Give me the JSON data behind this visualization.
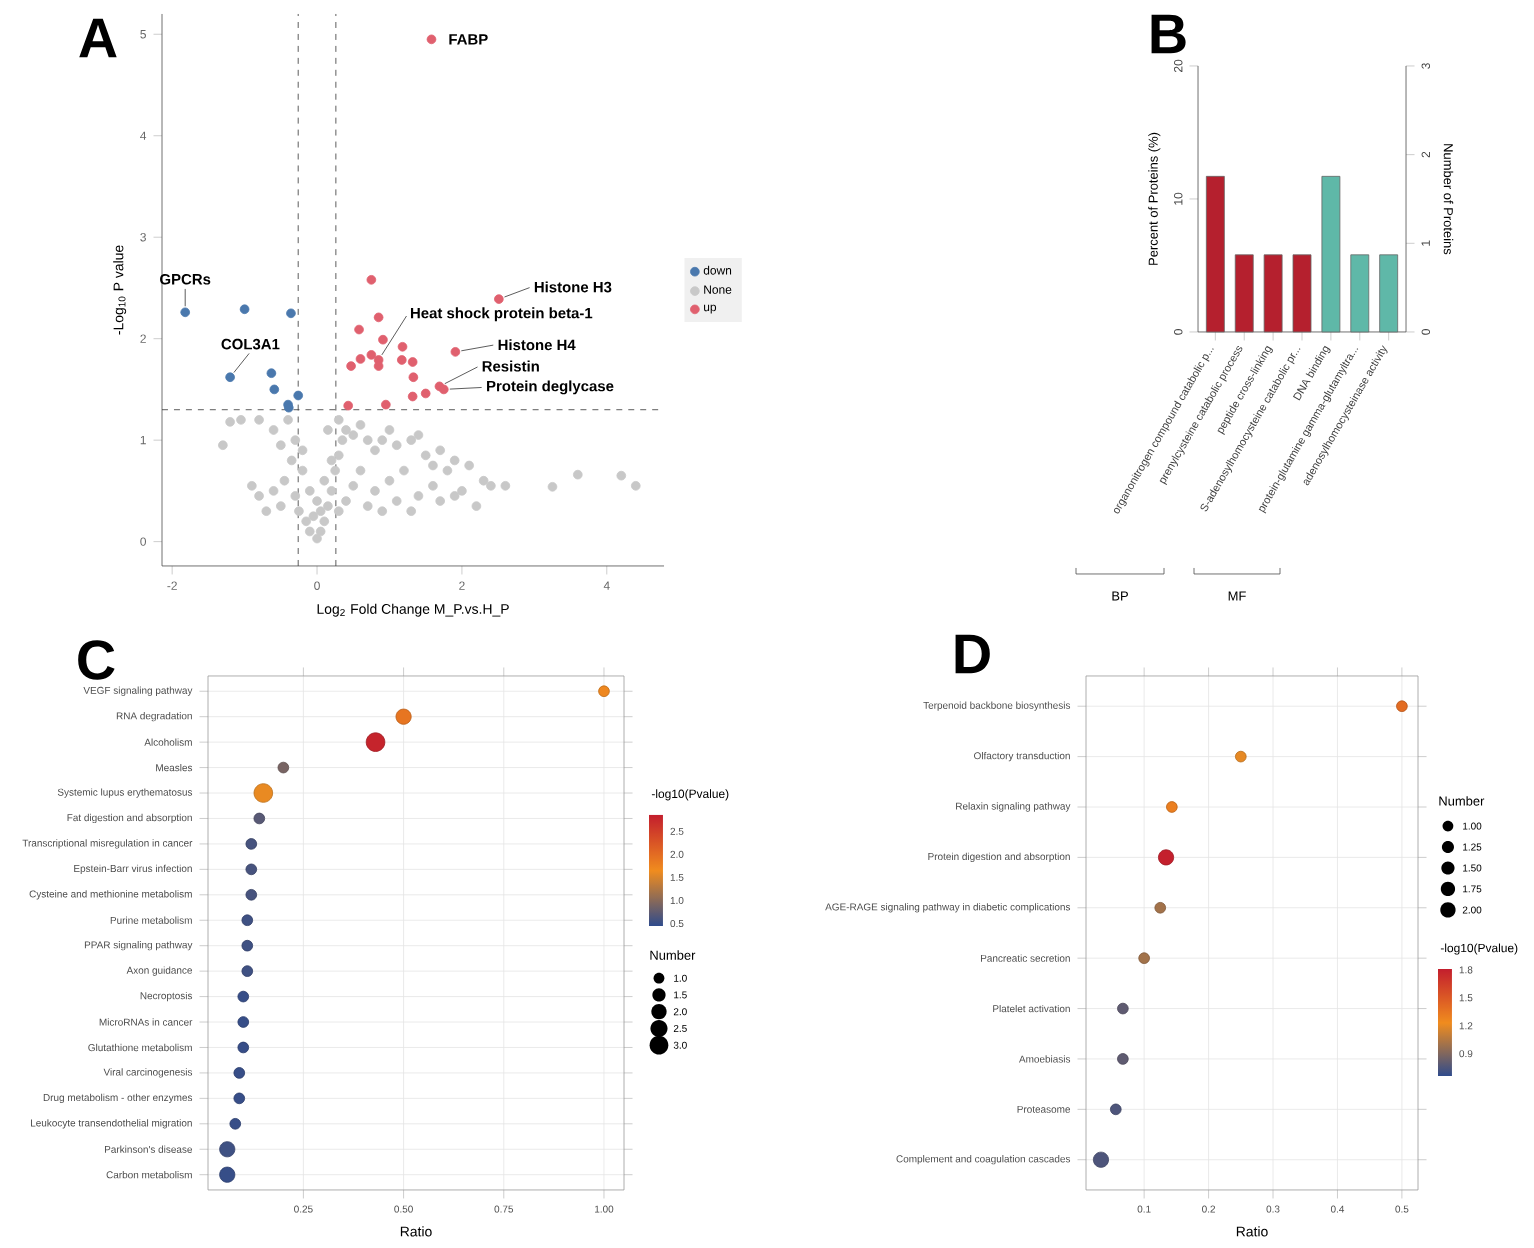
{
  "chart_data": [
    {
      "type": "scatter",
      "title": "A",
      "xlabel": "Log$_{2}$ Fold Change M_P.vs.H_P",
      "ylabel": "-Log$_{10}$ P value",
      "xlim": [
        -2.14,
        4.79
      ],
      "ylim": [
        -0.24,
        5.2
      ],
      "xticks": [
        -2,
        0,
        2,
        4
      ],
      "yticks": [
        0,
        1,
        2,
        3,
        4,
        5
      ],
      "legend": "right",
      "series": [
        {
          "name": "down",
          "color": "#4a78ad",
          "x": [
            -1.82,
            -1.0,
            -0.36,
            -0.63,
            -1.2,
            -0.59,
            -0.26,
            -0.4,
            -0.39
          ],
          "values": [
            2.26,
            2.29,
            2.25,
            1.66,
            1.62,
            1.5,
            1.44,
            1.35,
            1.32
          ]
        },
        {
          "name": "None",
          "color": "#c8c8c8",
          "x": [
            -1.2,
            -1.05,
            -1.3,
            -0.8,
            -0.6,
            -0.5,
            -0.4,
            -0.3,
            -0.2,
            -0.35,
            -0.45,
            -0.6,
            -0.8,
            -0.9,
            -0.7,
            -0.5,
            -0.3,
            -0.25,
            -0.15,
            -0.1,
            0,
            0.05,
            0.1,
            0.15,
            0.2,
            0.25,
            0.3,
            0.35,
            0.3,
            0.4,
            0.5,
            0.6,
            0.7,
            0.8,
            0.9,
            1.0,
            1.1,
            1.3,
            1.4,
            1.5,
            1.6,
            1.7,
            1.8,
            1.9,
            2.1,
            2.3,
            2.4,
            2.6,
            1.2,
            1.0,
            0.8,
            0.6,
            0.5,
            0.4,
            0.3,
            0.7,
            1.1,
            1.4,
            1.6,
            2.0,
            1.9,
            1.7,
            1.3,
            0.9,
            2.2,
            3.25,
            3.6,
            4.2,
            4.4,
            -0.1,
            0.1,
            0.2,
            -0.2,
            0.0,
            0.15,
            -0.05,
            0.05
          ],
          "values": [
            1.18,
            1.2,
            0.95,
            1.2,
            1.1,
            0.95,
            1.2,
            1.0,
            0.9,
            0.8,
            0.6,
            0.5,
            0.45,
            0.55,
            0.3,
            0.35,
            0.45,
            0.3,
            0.2,
            0.1,
            0.03,
            0.1,
            0.2,
            0.35,
            0.5,
            0.7,
            0.85,
            1.0,
            1.2,
            1.1,
            1.05,
            1.15,
            1.0,
            0.9,
            1.0,
            1.1,
            0.95,
            1.0,
            1.05,
            0.85,
            0.75,
            0.9,
            0.7,
            0.8,
            0.75,
            0.6,
            0.55,
            0.55,
            0.7,
            0.6,
            0.5,
            0.7,
            0.55,
            0.4,
            0.3,
            0.35,
            0.4,
            0.45,
            0.55,
            0.5,
            0.45,
            0.4,
            0.3,
            0.3,
            0.35,
            0.54,
            0.66,
            0.65,
            0.55,
            0.5,
            0.6,
            0.8,
            0.7,
            0.4,
            1.1,
            0.25,
            0.3
          ]
        },
        {
          "name": "up",
          "color": "#e0606e",
          "x": [
            1.58,
            0.75,
            2.51,
            0.85,
            0.58,
            0.91,
            1.18,
            1.91,
            0.75,
            0.6,
            0.85,
            1.17,
            1.32,
            0.47,
            0.85,
            1.33,
            1.69,
            1.75,
            1.5,
            1.32,
            0.43,
            0.95
          ],
          "values": [
            4.95,
            2.58,
            2.39,
            2.21,
            2.09,
            1.99,
            1.92,
            1.87,
            1.84,
            1.8,
            1.79,
            1.79,
            1.77,
            1.73,
            1.73,
            1.62,
            1.53,
            1.5,
            1.46,
            1.43,
            1.34,
            1.35
          ]
        }
      ],
      "ref_lines": [
        {
          "axis": "x",
          "value": -0.26,
          "line_style": "dashed"
        },
        {
          "axis": "x",
          "value": 0.26,
          "line_style": "dashed"
        },
        {
          "axis": "y",
          "value": 1.3,
          "line_style": "dashed"
        }
      ],
      "annotations": [
        {
          "text": "FABP",
          "x": 1.58,
          "y": 4.95
        },
        {
          "text": "Histone H3",
          "x": 2.51,
          "y": 2.39
        },
        {
          "text": "Heat shock protein beta-1",
          "x": 0.85,
          "y": 1.79
        },
        {
          "text": "Histone H4",
          "x": 1.91,
          "y": 1.87
        },
        {
          "text": "Resistin",
          "x": 1.69,
          "y": 1.53
        },
        {
          "text": "Protein deglycase",
          "x": 1.75,
          "y": 1.5
        },
        {
          "text": "GPCRs",
          "x": -1.82,
          "y": 2.26
        },
        {
          "text": "COL3A1",
          "x": -1.2,
          "y": 1.62
        }
      ]
    },
    {
      "type": "bar",
      "title": "B",
      "categories": [
        "organonitrogen compound catabolic p...",
        "prenylcysteine catabolic process",
        "peptide cross-linking",
        "S-adenosylhomocysteine catabolic pr...",
        "DNA binding",
        "protein-glutamine gamma-glutamyltra...",
        "adenosylhomocysteinase activity"
      ],
      "values": [
        11.7,
        5.8,
        5.8,
        5.8,
        11.7,
        5.8,
        5.8
      ],
      "colors": [
        "#b5202e",
        "#b5202e",
        "#b5202e",
        "#b5202e",
        "#5fb8a8",
        "#5fb8a8",
        "#5fb8a8"
      ],
      "ylabel": "Percent of Proteins (%)",
      "y2label": "Number of Proteins",
      "ylim": [
        0,
        20
      ],
      "yticks": [
        0,
        10,
        20
      ],
      "y2lim": [
        0,
        3
      ],
      "y2ticks": [
        0,
        1,
        2,
        3
      ],
      "annotations": [
        "BP",
        "MF"
      ]
    },
    {
      "type": "bubble",
      "title": "C",
      "orientation": "horizontal",
      "categories": [
        "VEGF signaling pathway",
        "RNA degradation",
        "Alcoholism",
        "Measles",
        "Systemic lupus erythematosus",
        "Fat digestion and absorption",
        "Transcriptional misregulation in cancer",
        "Epstein-Barr virus infection",
        "Cysteine and methionine metabolism",
        "Purine metabolism",
        "PPAR signaling pathway",
        "Axon guidance",
        "Necroptosis",
        "MicroRNAs in cancer",
        "Glutathione metabolism",
        "Viral carcinogenesis",
        "Drug metabolism - other enzymes",
        "Leukocyte transendothelial migration",
        "Parkinson's disease",
        "Carbon metabolism"
      ],
      "values": [
        1.0,
        0.5,
        0.43,
        0.2,
        0.15,
        0.14,
        0.12,
        0.12,
        0.12,
        0.11,
        0.11,
        0.11,
        0.1,
        0.1,
        0.1,
        0.09,
        0.09,
        0.08,
        0.06,
        0.06
      ],
      "sizes": [
        1,
        2,
        3,
        1,
        3,
        1,
        1,
        1,
        1,
        1,
        1,
        1,
        1,
        1,
        1,
        1,
        1,
        1,
        2,
        2
      ],
      "cvalues": [
        1.7,
        1.9,
        2.8,
        0.9,
        1.6,
        0.7,
        0.6,
        0.6,
        0.6,
        0.55,
        0.55,
        0.55,
        0.5,
        0.5,
        0.5,
        0.5,
        0.5,
        0.5,
        0.55,
        0.5
      ],
      "xlabel": "Ratio",
      "xlim": [
        0.012,
        1.05
      ],
      "xticks": [
        {
          "value": 0.25,
          "label": "0.25"
        },
        {
          "value": 0.5,
          "label": "0.50"
        },
        {
          "value": 0.75,
          "label": "0.75"
        },
        {
          "value": 1,
          "label": "1.00"
        }
      ],
      "grid": true,
      "clabel": "-log10(Pvalue)",
      "clim": [
        0.43,
        2.86
      ],
      "cticks": [
        0.5,
        {
          "value": 1,
          "label": "1.0"
        },
        1.5,
        {
          "value": 2,
          "label": "2.0"
        },
        2.5
      ],
      "legend_title": "Number",
      "size_legend": [
        {
          "value": 1,
          "label": "1.0"
        },
        1.5,
        {
          "value": 2,
          "label": "2.0"
        },
        2.5,
        {
          "value": 3,
          "label": "3.0"
        }
      ]
    },
    {
      "type": "bubble",
      "title": "D",
      "orientation": "horizontal",
      "categories": [
        "Terpenoid backbone biosynthesis",
        "Olfactory transduction",
        "Relaxin signaling pathway",
        "Protein digestion and absorption",
        "AGE-RAGE signaling pathway in diabetic complications",
        "Pancreatic secretion",
        "Platelet activation",
        "Amoebiasis",
        "Proteasome",
        "Complement and coagulation cascades"
      ],
      "values": [
        0.5,
        0.25,
        0.143,
        0.134,
        0.125,
        0.1,
        0.067,
        0.067,
        0.056,
        0.033
      ],
      "sizes": [
        1,
        1,
        1,
        2,
        1,
        1,
        1,
        1,
        1,
        2
      ],
      "cvalues": [
        1.4,
        1.2,
        1.3,
        1.8,
        1.0,
        1.0,
        0.8,
        0.8,
        0.75,
        0.75
      ],
      "xlabel": "Ratio",
      "xlim": [
        0.0098,
        0.525
      ],
      "xticks": [
        0.1,
        0.2,
        0.3,
        0.4,
        0.5
      ],
      "grid": true,
      "clabel": "-log10(Pvalue)",
      "clim": [
        0.65,
        1.81
      ],
      "cticks": [
        0.9,
        1.2,
        1.5,
        1.8
      ],
      "legend_title": "Number",
      "size_legend": [
        {
          "value": 1,
          "label": "1.00"
        },
        {
          "value": 1.25,
          "label": "1.25"
        },
        {
          "value": 1.5,
          "label": "1.50"
        },
        {
          "value": 1.75,
          "label": "1.75"
        },
        {
          "value": 2,
          "label": "2.00"
        }
      ]
    }
  ]
}
